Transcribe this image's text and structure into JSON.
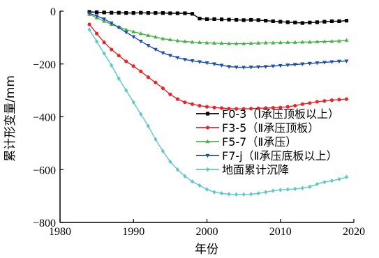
{
  "chart_data": {
    "type": "line",
    "xlabel": "年份",
    "ylabel": "累计形变量/mm",
    "xlim": [
      1980,
      2020
    ],
    "ylim": [
      -800,
      0
    ],
    "xticks": [
      1980,
      1990,
      2000,
      2010,
      2020
    ],
    "yticks": [
      0,
      -200,
      -400,
      -600,
      -800
    ],
    "xtick_labels": [
      "1980",
      "1990",
      "2000",
      "2010",
      "2020"
    ],
    "ytick_labels": [
      "0",
      "−200",
      "−400",
      "−600",
      "−800"
    ],
    "grid": false,
    "legend_position": "right",
    "x": [
      1984,
      1985,
      1986,
      1987,
      1988,
      1989,
      1990,
      1991,
      1992,
      1993,
      1994,
      1995,
      1996,
      1997,
      1998,
      1999,
      2000,
      2001,
      2002,
      2003,
      2004,
      2005,
      2006,
      2007,
      2008,
      2009,
      2010,
      2011,
      2012,
      2013,
      2014,
      2015,
      2016,
      2017,
      2018,
      2019
    ],
    "series": [
      {
        "name": "F0-3（Ⅰ承压顶板以上）",
        "color": "#000000",
        "marker": "square",
        "values": [
          -3,
          -4,
          -5,
          -6,
          -6,
          -7,
          -7,
          -6,
          -7,
          -7,
          -7,
          -8,
          -8,
          -8,
          -10,
          -28,
          -30,
          -30,
          -31,
          -32,
          -33,
          -34,
          -33,
          -34,
          -36,
          -38,
          -40,
          -42,
          -43,
          -45,
          -43,
          -42,
          -40,
          -38,
          -38,
          -36
        ]
      },
      {
        "name": "F3-5（Ⅱ承压顶板）",
        "color": "#e8262a",
        "marker": "circle",
        "values": [
          -50,
          -85,
          -118,
          -145,
          -168,
          -190,
          -208,
          -228,
          -250,
          -270,
          -292,
          -315,
          -333,
          -345,
          -352,
          -358,
          -362,
          -365,
          -367,
          -369,
          -370,
          -370,
          -369,
          -368,
          -367,
          -366,
          -365,
          -362,
          -358,
          -352,
          -348,
          -343,
          -340,
          -337,
          -335,
          -333
        ]
      },
      {
        "name": "F5-7（Ⅱ承压）",
        "color": "#4bb24b",
        "marker": "triangle-up",
        "values": [
          -12,
          -25,
          -38,
          -50,
          -60,
          -70,
          -78,
          -85,
          -92,
          -98,
          -104,
          -108,
          -112,
          -115,
          -117,
          -118,
          -120,
          -121,
          -122,
          -123,
          -123,
          -123,
          -122,
          -121,
          -120,
          -120,
          -119,
          -118,
          -118,
          -117,
          -117,
          -116,
          -115,
          -114,
          -113,
          -110
        ]
      },
      {
        "name": "F7-j（Ⅱ承压底板以上）",
        "color": "#1f4faa",
        "marker": "triangle-down",
        "values": [
          -8,
          -18,
          -30,
          -45,
          -62,
          -80,
          -97,
          -114,
          -130,
          -145,
          -158,
          -168,
          -176,
          -183,
          -188,
          -192,
          -196,
          -200,
          -205,
          -210,
          -212,
          -213,
          -212,
          -211,
          -210,
          -208,
          -206,
          -204,
          -202,
          -200,
          -198,
          -196,
          -194,
          -192,
          -190,
          -189
        ]
      },
      {
        "name": "地面累计沉降",
        "color": "#5fc6c9",
        "marker": "diamond",
        "values": [
          -70,
          -115,
          -160,
          -205,
          -255,
          -300,
          -345,
          -390,
          -435,
          -485,
          -530,
          -570,
          -600,
          -625,
          -645,
          -660,
          -675,
          -685,
          -690,
          -693,
          -694,
          -694,
          -693,
          -690,
          -685,
          -680,
          -677,
          -675,
          -673,
          -670,
          -665,
          -655,
          -647,
          -642,
          -636,
          -628
        ]
      }
    ]
  }
}
